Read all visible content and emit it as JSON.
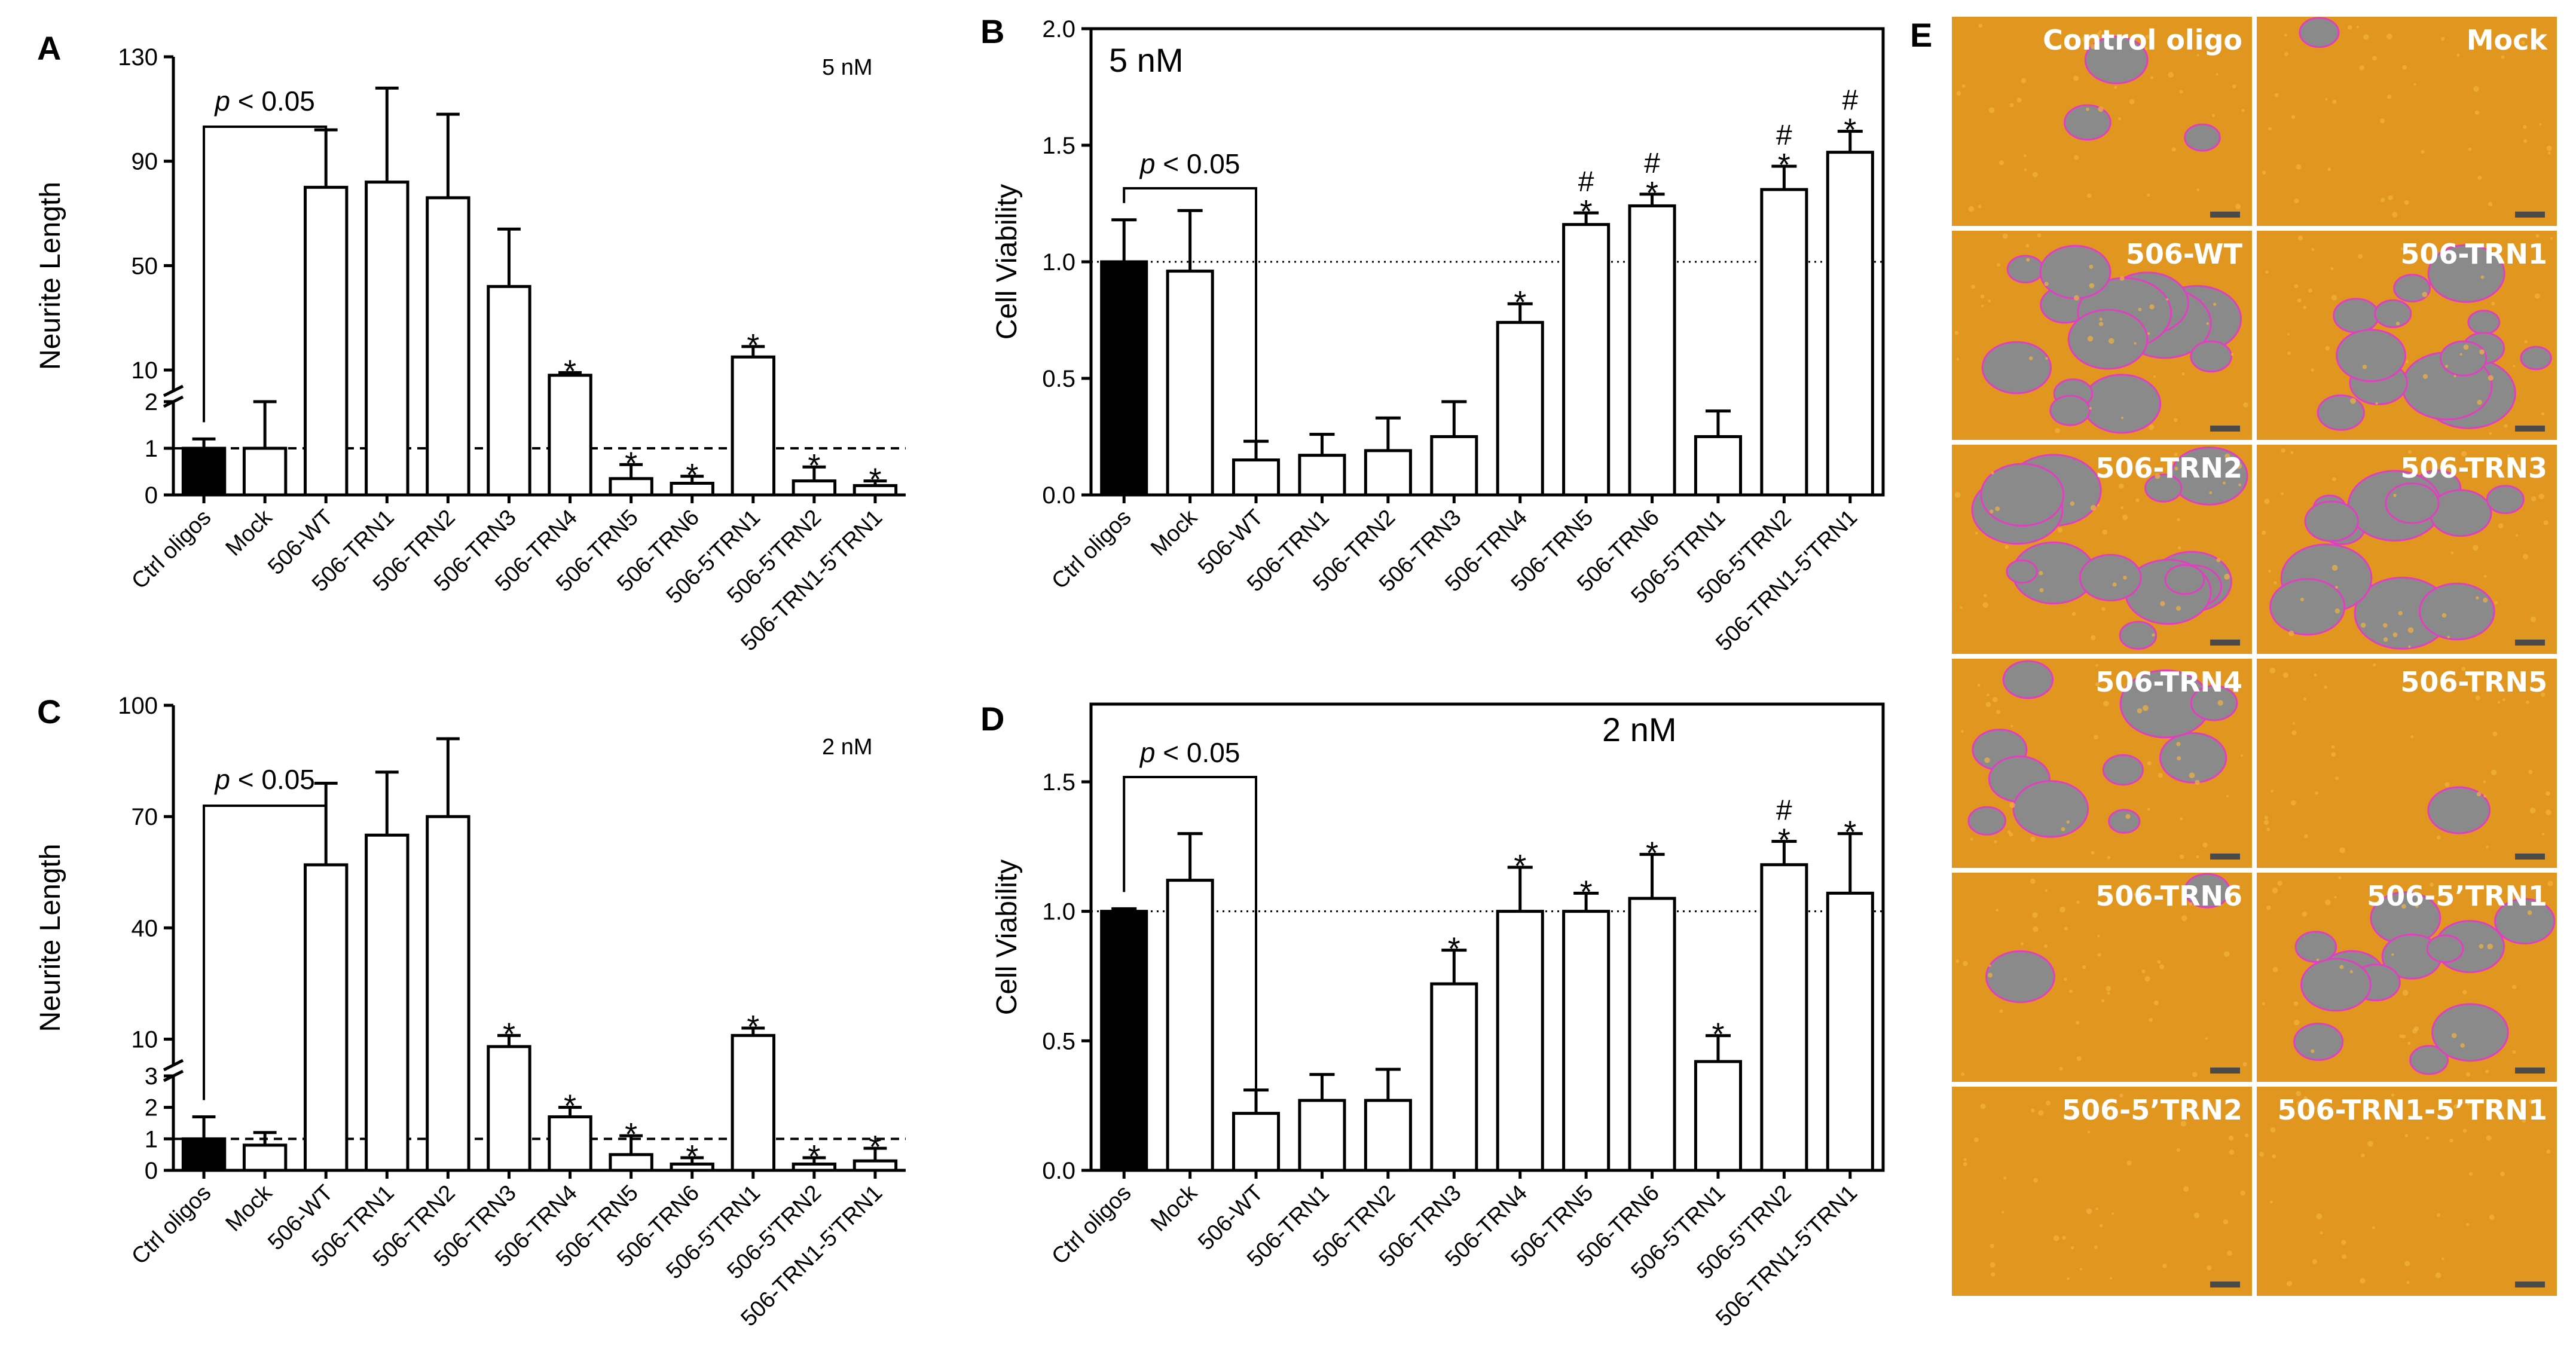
{
  "figure": {
    "panels": [
      "A",
      "B",
      "C",
      "D",
      "E"
    ]
  },
  "chart_data": [
    {
      "id": "A",
      "type": "bar",
      "title": "5 nM",
      "ylabel": "Neurite Length",
      "xlabel": "",
      "axis_break": true,
      "y_lower": {
        "range": [
          0,
          2
        ],
        "ticks": [
          0,
          1,
          2
        ]
      },
      "y_upper": {
        "range": [
          2,
          130
        ],
        "ticks": [
          10,
          50,
          90,
          130
        ]
      },
      "reference_line": 1,
      "categories": [
        "Ctrl oligos",
        "Mock",
        "506-WT",
        "506-TRN1",
        "506-TRN2",
        "506-TRN3",
        "506-TRN4",
        "506-TRN5",
        "506-TRN6",
        "506-5'TRN1",
        "506-5'TRN2",
        "506-TRN1-5'TRN1"
      ],
      "values": [
        1.0,
        1.0,
        80,
        82,
        76,
        42,
        8,
        0.35,
        0.25,
        15,
        0.3,
        0.2
      ],
      "errors": [
        0.2,
        1.0,
        22,
        36,
        32,
        22,
        1,
        0.3,
        0.15,
        4,
        0.3,
        0.1
      ],
      "filled": [
        true,
        false,
        false,
        false,
        false,
        false,
        false,
        false,
        false,
        false,
        false,
        false
      ],
      "marks": [
        "",
        "",
        "",
        "",
        "",
        "",
        "*",
        "*",
        "*",
        "*",
        "*",
        "*"
      ],
      "significance": {
        "label_italic": "p",
        "label_rest": " < 0.05",
        "from": 0,
        "to": 2
      }
    },
    {
      "id": "B",
      "type": "bar",
      "title": "5 nM",
      "ylabel": "Cell Viability",
      "xlabel": "",
      "ylim": [
        0,
        2.0
      ],
      "yticks": [
        "0.0",
        "0.5",
        "1.0",
        "1.5",
        "2.0"
      ],
      "reference_line": 1.0,
      "categories": [
        "Ctrl oligos",
        "Mock",
        "506-WT",
        "506-TRN1",
        "506-TRN2",
        "506-TRN3",
        "506-TRN4",
        "506-TRN5",
        "506-TRN6",
        "506-5'TRN1",
        "506-5'TRN2",
        "506-TRN1-5'TRN1"
      ],
      "values": [
        1.0,
        0.96,
        0.15,
        0.17,
        0.19,
        0.25,
        0.74,
        1.16,
        1.24,
        0.25,
        1.31,
        1.47
      ],
      "errors": [
        0.18,
        0.26,
        0.08,
        0.09,
        0.14,
        0.15,
        0.08,
        0.05,
        0.05,
        0.11,
        0.1,
        0.09
      ],
      "filled": [
        true,
        false,
        false,
        false,
        false,
        false,
        false,
        false,
        false,
        false,
        false,
        false
      ],
      "marks": [
        "",
        "",
        "",
        "",
        "",
        "",
        "*",
        "*",
        "*",
        "",
        "*",
        "*"
      ],
      "hash_marks": [
        "",
        "",
        "",
        "",
        "",
        "",
        "",
        "#",
        "#",
        "",
        "#",
        "#"
      ],
      "significance": {
        "label_italic": "p",
        "label_rest": " < 0.05",
        "from": 0,
        "to": 2
      }
    },
    {
      "id": "C",
      "type": "bar",
      "title": "2 nM",
      "ylabel": "Neurite Length",
      "xlabel": "",
      "axis_break": true,
      "y_lower": {
        "range": [
          0,
          3
        ],
        "ticks": [
          0,
          1,
          2,
          3
        ]
      },
      "y_upper": {
        "range": [
          3,
          100
        ],
        "ticks": [
          10,
          40,
          70,
          100
        ]
      },
      "reference_line": 1,
      "categories": [
        "Ctrl oligos",
        "Mock",
        "506-WT",
        "506-TRN1",
        "506-TRN2",
        "506-TRN3",
        "506-TRN4",
        "506-TRN5",
        "506-TRN6",
        "506-5'TRN1",
        "506-5'TRN2",
        "506-TRN1-5'TRN1"
      ],
      "values": [
        1.0,
        0.8,
        57,
        65,
        70,
        8,
        1.7,
        0.5,
        0.2,
        11,
        0.2,
        0.3
      ],
      "errors": [
        0.7,
        0.4,
        22,
        17,
        21,
        3,
        0.3,
        0.6,
        0.2,
        2,
        0.2,
        0.4
      ],
      "filled": [
        true,
        false,
        false,
        false,
        false,
        false,
        false,
        false,
        false,
        false,
        false,
        false
      ],
      "marks": [
        "",
        "",
        "",
        "",
        "",
        "*",
        "*",
        "*",
        "*",
        "*",
        "*",
        "*"
      ],
      "significance": {
        "label_italic": "p",
        "label_rest": " < 0.05",
        "from": 0,
        "to": 2
      }
    },
    {
      "id": "D",
      "type": "bar",
      "title": "2 nM",
      "ylabel": "Cell Viability",
      "xlabel": "",
      "ylim": [
        0,
        1.8
      ],
      "yticks": [
        "0.0",
        "0.5",
        "1.0",
        "1.5"
      ],
      "reference_line": 1.0,
      "categories": [
        "Ctrl oligos",
        "Mock",
        "506-WT",
        "506-TRN1",
        "506-TRN2",
        "506-TRN3",
        "506-TRN4",
        "506-TRN5",
        "506-TRN6",
        "506-5'TRN1",
        "506-5'TRN2",
        "506-TRN1-5'TRN1"
      ],
      "values": [
        1.0,
        1.12,
        0.22,
        0.27,
        0.27,
        0.72,
        1.0,
        1.0,
        1.05,
        0.42,
        1.18,
        1.07
      ],
      "errors": [
        0.01,
        0.18,
        0.09,
        0.1,
        0.12,
        0.13,
        0.17,
        0.07,
        0.17,
        0.1,
        0.09,
        0.23
      ],
      "filled": [
        true,
        false,
        false,
        false,
        false,
        false,
        false,
        false,
        false,
        false,
        false,
        false
      ],
      "marks": [
        "",
        "",
        "",
        "",
        "",
        "*",
        "*",
        "*",
        "*",
        "*",
        "*",
        "*"
      ],
      "hash_marks": [
        "",
        "",
        "",
        "",
        "",
        "",
        "",
        "",
        "",
        "",
        "#",
        ""
      ],
      "significance": {
        "label_italic": "p",
        "label_rest": " < 0.05",
        "from": 0,
        "to": 2
      }
    }
  ],
  "micrographs": {
    "tiles": [
      {
        "label": "Control oligo",
        "mask": 0.12
      },
      {
        "label": "Mock",
        "mask": 0.04
      },
      {
        "label": "506-WT",
        "mask": 0.55
      },
      {
        "label": "506-TRN1",
        "mask": 0.5
      },
      {
        "label": "506-TRN2",
        "mask": 0.5
      },
      {
        "label": "506-TRN3",
        "mask": 0.45
      },
      {
        "label": "506-TRN4",
        "mask": 0.4
      },
      {
        "label": "506-TRN5",
        "mask": 0.02
      },
      {
        "label": "506-TRN6",
        "mask": 0.06
      },
      {
        "label": "506-5’TRN1",
        "mask": 0.45
      },
      {
        "label": "506-5’TRN2",
        "mask": 0.0
      },
      {
        "label": "506-TRN1-5’TRN1",
        "mask": 0.0
      }
    ],
    "colors": {
      "cells": "#e0961f",
      "gap": "#8a8a8a",
      "outline": "#e040c0",
      "border": "#ffffff"
    }
  },
  "colors": {
    "ink": "#000000",
    "filled_bar": "#000000",
    "open_bar": "#ffffff"
  }
}
